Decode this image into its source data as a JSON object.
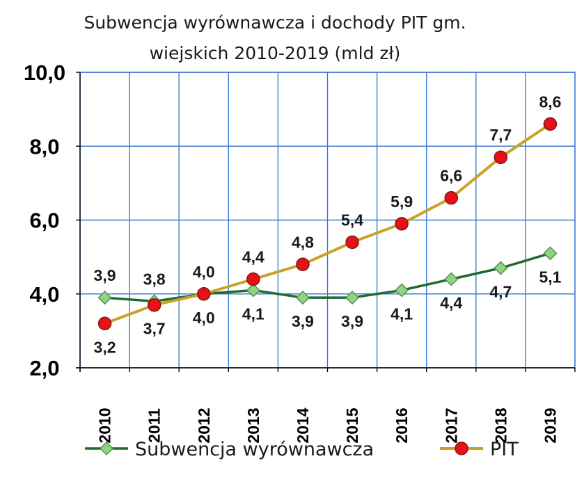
{
  "chart_data": {
    "type": "line",
    "title": [
      "Subwencja wyrównawcza i dochody PIT gm.",
      "wiejskich 2010-2019  (mld zł)"
    ],
    "categories": [
      "2010",
      "2011",
      "2012",
      "2013",
      "2014",
      "2015",
      "2016",
      "2017",
      "2018",
      "2019"
    ],
    "ylim": [
      2.0,
      10.0
    ],
    "yticks": [
      {
        "value": 2.0,
        "label": "2,0"
      },
      {
        "value": 4.0,
        "label": "4,0"
      },
      {
        "value": 6.0,
        "label": "6,0"
      },
      {
        "value": 8.0,
        "label": "8,0"
      },
      {
        "value": 10.0,
        "label": "10,0"
      }
    ],
    "grid": true,
    "legend_position": "bottom",
    "series": [
      {
        "name": "Subwencja wyrównawcza",
        "color": "#1f6a2c",
        "marker": "diamond",
        "marker_color": "#8fd47f",
        "values": [
          3.9,
          3.8,
          4.0,
          4.1,
          3.9,
          3.9,
          4.1,
          4.4,
          4.7,
          5.1
        ],
        "labels": [
          "3,9",
          "3,8",
          "4,0",
          "4,1",
          "3,9",
          "3,9",
          "4,1",
          "4,4",
          "4,7",
          "5,1"
        ]
      },
      {
        "name": "PIT",
        "color": "#c9a227",
        "marker": "circle",
        "marker_color": "#e8111a",
        "values": [
          3.2,
          3.7,
          4.0,
          4.4,
          4.8,
          5.4,
          5.9,
          6.6,
          7.7,
          8.6
        ],
        "labels": [
          "3,2",
          "3,7",
          "4,0",
          "4,4",
          "4,8",
          "5,4",
          "5,9",
          "6,6",
          "7,7",
          "8,6"
        ]
      }
    ]
  }
}
